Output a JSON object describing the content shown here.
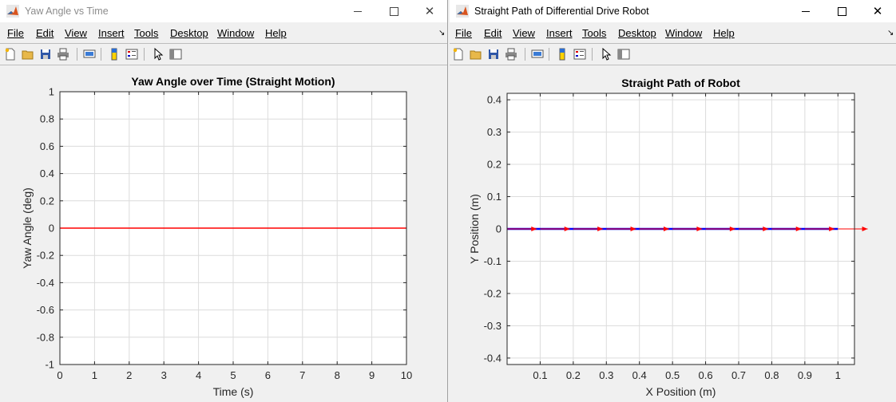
{
  "windows": [
    {
      "title": "Yaw Angle vs Time",
      "menu": [
        "File",
        "Edit",
        "View",
        "Insert",
        "Tools",
        "Desktop",
        "Window",
        "Help"
      ],
      "toolbar_icons": [
        "new-figure-icon",
        "open-folder-icon",
        "save-icon",
        "print-icon",
        "print-preview-icon",
        "colorbar-icon",
        "legend-icon",
        "pointer-icon",
        "property-editor-icon"
      ]
    },
    {
      "title": "Straight Path of Differential Drive Robot",
      "menu": [
        "File",
        "Edit",
        "View",
        "Insert",
        "Tools",
        "Desktop",
        "Window",
        "Help"
      ],
      "toolbar_icons": [
        "new-figure-icon",
        "open-folder-icon",
        "save-icon",
        "print-icon",
        "print-preview-icon",
        "colorbar-icon",
        "legend-icon",
        "pointer-icon",
        "property-editor-icon"
      ]
    }
  ],
  "chart_data": [
    {
      "type": "line",
      "title": "Yaw Angle over Time (Straight Motion)",
      "xlabel": "Time (s)",
      "ylabel": "Yaw Angle (deg)",
      "xlim": [
        0,
        10
      ],
      "ylim": [
        -1,
        1
      ],
      "xticks": [
        "0",
        "1",
        "2",
        "3",
        "4",
        "5",
        "6",
        "7",
        "8",
        "9",
        "10"
      ],
      "yticks": [
        "-1",
        "-0.8",
        "-0.6",
        "-0.4",
        "-0.2",
        "0",
        "0.2",
        "0.4",
        "0.6",
        "0.8",
        "1"
      ],
      "grid": true,
      "series": [
        {
          "x": [
            0,
            10
          ],
          "y": [
            0,
            0
          ],
          "color": "#ff0000"
        }
      ]
    },
    {
      "type": "line",
      "title": "Straight Path of Robot",
      "xlabel": "X Position (m)",
      "ylabel": "Y Position (m)",
      "xlim": [
        0,
        1.05
      ],
      "ylim": [
        -0.42,
        0.42
      ],
      "xticks": [
        "0.1",
        "0.2",
        "0.3",
        "0.4",
        "0.5",
        "0.6",
        "0.7",
        "0.8",
        "0.9",
        "1"
      ],
      "yticks": [
        "-0.4",
        "-0.3",
        "-0.2",
        "-0.1",
        "0",
        "0.1",
        "0.2",
        "0.3",
        "0.4"
      ],
      "grid": true,
      "series": [
        {
          "x": [
            0,
            1.0
          ],
          "y": [
            0,
            0
          ],
          "color": "#0000ff"
        }
      ],
      "quiver": {
        "color": "#ff0000",
        "x": [
          0,
          0.1,
          0.2,
          0.3,
          0.4,
          0.5,
          0.6,
          0.7,
          0.8,
          0.9,
          1.0
        ],
        "y": [
          0,
          0,
          0,
          0,
          0,
          0,
          0,
          0,
          0,
          0,
          0
        ]
      }
    }
  ]
}
